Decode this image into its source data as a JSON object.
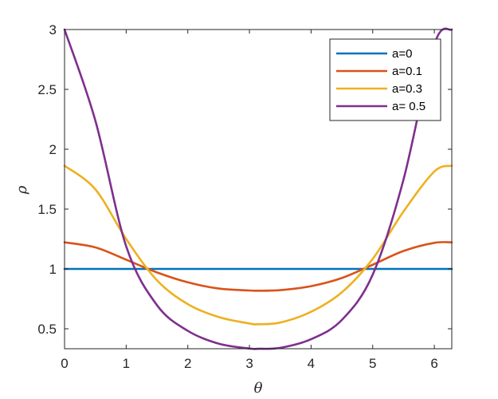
{
  "chart_data": {
    "type": "line",
    "title": "",
    "xlabel": "θ",
    "ylabel": "ρ",
    "xlim": [
      0,
      6.2832
    ],
    "ylim": [
      0.3333,
      3
    ],
    "xticks": [
      0,
      1,
      2,
      3,
      4,
      5,
      6
    ],
    "yticks": [
      0.5,
      1,
      1.5,
      2,
      2.5,
      3
    ],
    "xtick_labels": [
      "0",
      "1",
      "2",
      "3",
      "4",
      "5",
      "6"
    ],
    "ytick_labels": [
      "0.5",
      "1",
      "1.5",
      "2",
      "2.5",
      "3"
    ],
    "grid": false,
    "legend_position": "top-right",
    "x": [
      0,
      0.5,
      1.0,
      1.5,
      2.0,
      2.5,
      3.0,
      3.1416,
      3.5,
      4.0,
      4.5,
      5.0,
      5.5,
      6.0,
      6.2832
    ],
    "series": [
      {
        "name": "a=0",
        "color": "#0072BD",
        "values": [
          1,
          1,
          1,
          1,
          1,
          1,
          1,
          1,
          1,
          1,
          1,
          1,
          1,
          1,
          1
        ]
      },
      {
        "name": "a=0.1",
        "color": "#D95319",
        "values": [
          1.222,
          1.18,
          1.077,
          0.971,
          0.888,
          0.836,
          0.82,
          0.818,
          0.823,
          0.856,
          0.924,
          1.035,
          1.15,
          1.218,
          1.222
        ]
      },
      {
        "name": "a=0.3",
        "color": "#EDB120",
        "values": [
          1.862,
          1.665,
          1.25,
          0.905,
          0.706,
          0.598,
          0.544,
          0.538,
          0.552,
          0.642,
          0.805,
          1.084,
          1.48,
          1.814,
          1.862
        ]
      },
      {
        "name": "a= 0.5",
        "color": "#7E2F8E",
        "values": [
          3.0,
          2.239,
          1.189,
          0.697,
          0.483,
          0.376,
          0.335,
          0.333,
          0.341,
          0.413,
          0.574,
          0.952,
          1.747,
          2.874,
          3.0
        ]
      }
    ]
  }
}
